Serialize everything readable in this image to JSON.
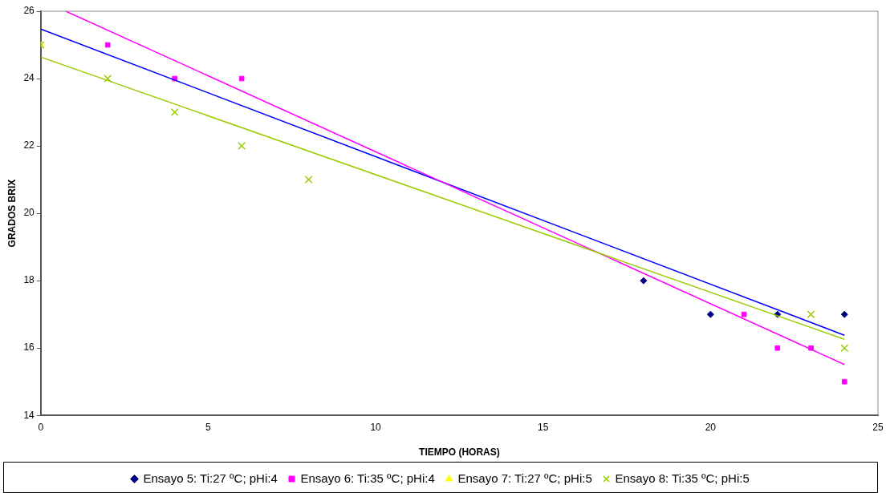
{
  "chart_data": {
    "type": "scatter",
    "xlabel": "TIEMPO (HORAS)",
    "ylabel": "GRADOS BRIX",
    "xlim": [
      0,
      25
    ],
    "xticks": [
      0,
      5,
      10,
      15,
      20,
      25
    ],
    "ylim": [
      14,
      26
    ],
    "yticks": [
      14,
      16,
      18,
      20,
      22,
      24,
      26
    ],
    "grid": false,
    "legend": "bottom",
    "series": [
      {
        "name": "Ensayo 5: Ti:27 ºC; pHi:4",
        "color": "#000080",
        "marker": "diamond",
        "x": [
          18,
          20,
          22,
          24
        ],
        "values": [
          18,
          17,
          17,
          17
        ]
      },
      {
        "name": "Ensayo 6: Ti:35 ºC; pHi:4",
        "color": "#ff00ff",
        "marker": "square",
        "x": [
          2,
          4,
          6,
          21,
          22,
          23,
          24
        ],
        "values": [
          25,
          24,
          24,
          17,
          16,
          16,
          15
        ]
      },
      {
        "name": "Ensayo 7: Ti:27 ºC; pHi:5",
        "color": "#ffff00",
        "marker": "triangle",
        "x": [
          0
        ],
        "values": [
          25
        ]
      },
      {
        "name": "Ensayo 8: Ti:35 ºC; pHi:5",
        "color": "#99cc00",
        "marker": "cross",
        "x": [
          0,
          2,
          4,
          6,
          8,
          23,
          24
        ],
        "values": [
          25,
          24,
          23,
          22,
          21,
          17,
          16
        ]
      },
      {
        "type": "line",
        "color": "#0000ff",
        "marker": "none",
        "x": [
          0,
          24
        ],
        "values": [
          25.47,
          16.38
        ]
      },
      {
        "type": "line",
        "color": "#ff00ff",
        "marker": "none",
        "x": [
          0.75,
          24
        ],
        "values": [
          26,
          15.51
        ]
      },
      {
        "type": "line",
        "color": "#99cc00",
        "marker": "none",
        "x": [
          0,
          24
        ],
        "values": [
          24.64,
          16.26
        ]
      }
    ]
  }
}
